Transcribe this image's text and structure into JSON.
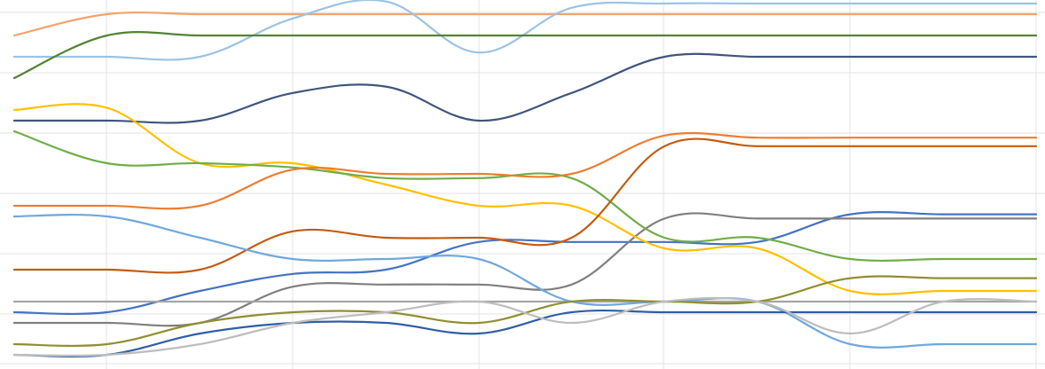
{
  "chart_data": {
    "type": "line",
    "title": "",
    "xlabel": "",
    "ylabel": "",
    "x": [
      0,
      1,
      2,
      3,
      4,
      5,
      6,
      7,
      8,
      9,
      10,
      11
    ],
    "xlim": [
      0,
      11
    ],
    "ylim": [
      0.5,
      17.5
    ],
    "grid": true,
    "legend": "none",
    "series": [
      {
        "color": "#f4a26b",
        "values": [
          16,
          17,
          17,
          17,
          17,
          17,
          17,
          17,
          17,
          17,
          17,
          17
        ]
      },
      {
        "color": "#9bc3e6",
        "values": [
          15,
          15,
          15,
          16.8,
          17.6,
          15.2,
          17.3,
          17.5,
          17.5,
          17.5,
          17.5,
          17.5
        ]
      },
      {
        "color": "#548235",
        "values": [
          14,
          16,
          16,
          16,
          16,
          16,
          16,
          16,
          16,
          16,
          16,
          16
        ]
      },
      {
        "color": "#3f557d",
        "values": [
          12,
          12,
          12,
          13.3,
          13.6,
          12,
          13.3,
          15,
          15,
          15,
          15,
          15
        ]
      },
      {
        "color": "#4472c4",
        "values": [
          3,
          3,
          4,
          4.8,
          5,
          6.3,
          6.3,
          6.3,
          6.3,
          7.6,
          7.6,
          7.6
        ]
      },
      {
        "color": "#7f7f7f",
        "values": [
          2.5,
          2.5,
          2.5,
          4.2,
          4.3,
          4.3,
          4.3,
          7.4,
          7.4,
          7.4,
          7.4,
          7.4
        ]
      },
      {
        "color": "#ffc000",
        "values": [
          12.5,
          12.6,
          10,
          10,
          9,
          8,
          8,
          6,
          6,
          4,
          4,
          4
        ]
      },
      {
        "color": "#70ad47",
        "values": [
          11.5,
          10,
          10,
          9.8,
          9.3,
          9.3,
          9.3,
          6.5,
          6.5,
          5.5,
          5.5,
          5.5
        ]
      },
      {
        "color": "#ed7d31",
        "values": [
          8,
          8,
          8,
          9.7,
          9.5,
          9.5,
          9.5,
          11.3,
          11.2,
          11.2,
          11.2,
          11.2
        ]
      },
      {
        "color": "#c55a11",
        "values": [
          5,
          5,
          5,
          6.8,
          6.5,
          6.5,
          6.5,
          10.8,
          10.8,
          10.8,
          10.8,
          10.8
        ]
      },
      {
        "color": "#a5a5a5",
        "values": [
          3.5,
          3.5,
          3.5,
          3.5,
          3.5,
          3.5,
          3.5,
          3.5,
          3.5,
          3.5,
          3.5,
          3.5
        ]
      },
      {
        "color": "#6fa8dc",
        "values": [
          7.5,
          7.5,
          6.5,
          5.5,
          5.5,
          5.5,
          3.5,
          3.5,
          3.5,
          1.5,
          1.5,
          1.5
        ]
      },
      {
        "color": "#2e5ea7",
        "values": [
          1,
          1,
          2,
          2.5,
          2.5,
          2,
          3,
          3,
          3,
          3,
          3,
          3
        ]
      },
      {
        "color": "#8f8f30",
        "values": [
          1.5,
          1.5,
          2.5,
          3,
          3,
          2.5,
          3.5,
          3.5,
          3.5,
          4.6,
          4.6,
          4.6
        ]
      },
      {
        "color": "#bdbdbd",
        "values": [
          1,
          1,
          1.5,
          2.5,
          3,
          3.5,
          2.5,
          3.5,
          3.5,
          2,
          3.5,
          3.5
        ]
      }
    ]
  }
}
